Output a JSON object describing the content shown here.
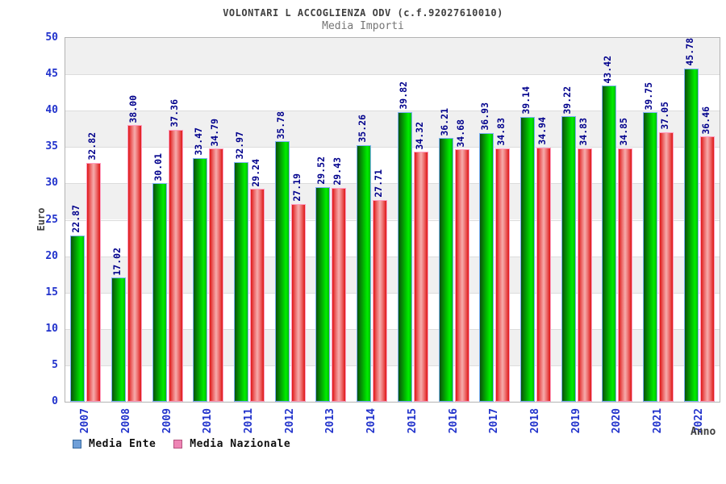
{
  "chart_data": {
    "type": "bar",
    "title": "VOLONTARI L ACCOGLIENZA ODV (c.f.92027610010)",
    "subtitle": "Media Importi",
    "xlabel": "Anno",
    "ylabel": "Euro",
    "ylim": [
      0,
      50
    ],
    "ytick_step": 5,
    "grid": true,
    "band_fill_alternating": true,
    "legend_position": "bottom-left",
    "categories": [
      "2007",
      "2008",
      "2009",
      "2010",
      "2011",
      "2012",
      "2013",
      "2014",
      "2015",
      "2016",
      "2017",
      "2018",
      "2019",
      "2020",
      "2021",
      "2022"
    ],
    "series": [
      {
        "name": "Media Ente",
        "bar_color": "#00cc00",
        "bar_border_color": "#7db0f5",
        "legend_swatch_color": "#6f9fd8",
        "values": [
          22.87,
          17.02,
          30.01,
          33.47,
          32.97,
          35.78,
          29.52,
          35.26,
          39.82,
          36.21,
          36.93,
          39.14,
          39.22,
          43.42,
          39.75,
          45.78
        ],
        "value_labels": [
          "22.87",
          "17.02",
          "30.01",
          "33.47",
          "32.97",
          "35.78",
          "29.52",
          "35.26",
          "39.82",
          "36.21",
          "36.93",
          "39.14",
          "39.22",
          "43.42",
          "39.75",
          "45.78"
        ]
      },
      {
        "name": "Media Nazionale",
        "bar_color": "#e84a4a",
        "bar_border_color": "#ff9dc0",
        "legend_swatch_color": "#ee85b5",
        "values": [
          32.82,
          38.0,
          37.36,
          34.79,
          29.24,
          27.19,
          29.43,
          27.71,
          34.32,
          34.68,
          34.83,
          34.94,
          34.83,
          34.85,
          37.05,
          36.46
        ],
        "value_labels": [
          "32.82",
          "38.00",
          "37.36",
          "34.79",
          "29.24",
          "27.19",
          "29.43",
          "27.71",
          "34.32",
          "34.68",
          "34.83",
          "34.94",
          "34.83",
          "34.85",
          "37.05",
          "36.46"
        ]
      }
    ],
    "colors": {
      "axis_tick_label": "#2233cc",
      "bar_value_label": "#00008c",
      "title_text": "#404040",
      "subtitle_text": "#757575",
      "gridline": "#dcdcdc",
      "band_gray": "#f0f0f0",
      "plot_border": "#b3b3b3"
    }
  }
}
